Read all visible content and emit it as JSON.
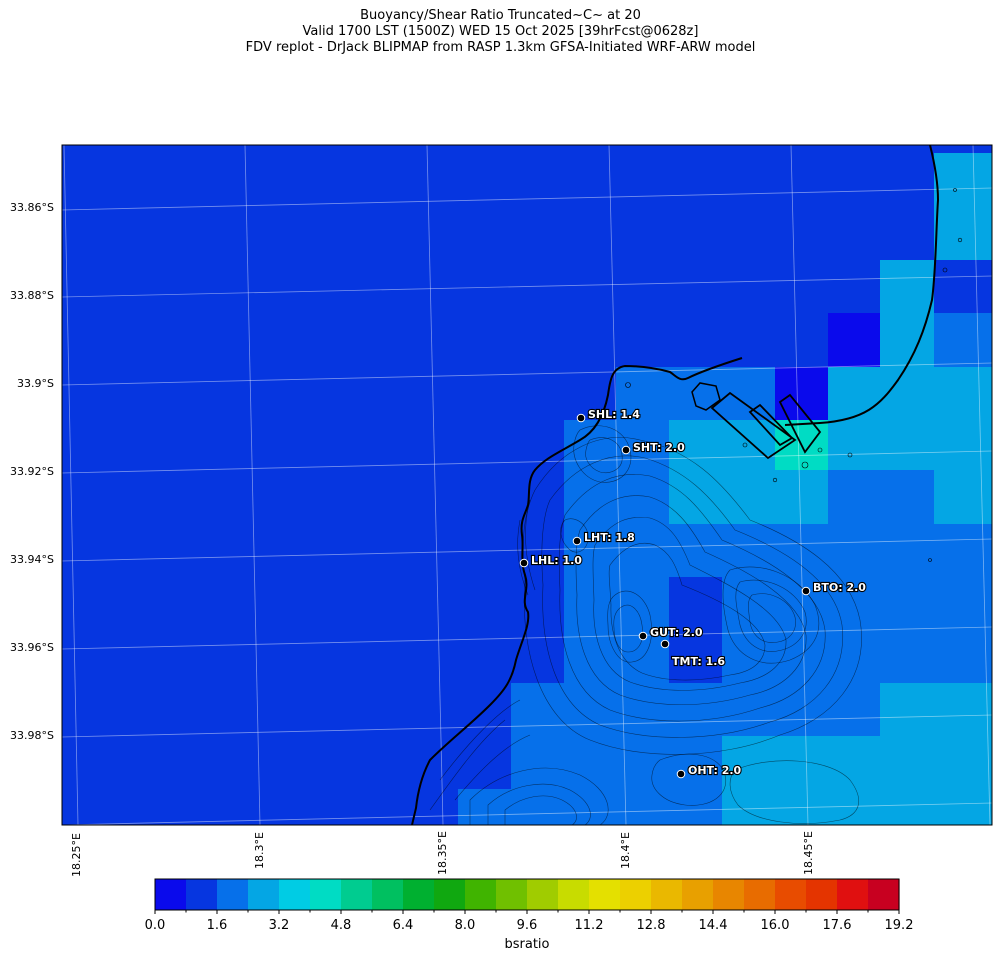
{
  "title": {
    "line1": "Buoyancy/Shear Ratio Truncated~C~    at 20",
    "line2": "Valid 1700 LST (1500Z) WED 15 Oct 2025 [39hrFcst@0628z]",
    "line3": "FDV replot - DrJack BLIPMAP from RASP 1.3km GFSA-Initiated WRF-ARW model"
  },
  "lat_labels": [
    "33.86°S",
    "33.88°S",
    "33.9°S",
    "33.92°S",
    "33.94°S",
    "33.96°S",
    "33.98°S"
  ],
  "lon_labels": [
    "18.25°E",
    "18.3°E",
    "18.35°E",
    "18.4°E",
    "18.45°E"
  ],
  "stations": [
    {
      "label": "SHL: 1.4"
    },
    {
      "label": "SHT: 2.0"
    },
    {
      "label": "LHT: 1.8"
    },
    {
      "label": "LHL: 1.0"
    },
    {
      "label": "BTO: 2.0"
    },
    {
      "label": "GUT: 2.0"
    },
    {
      "label": "TMT: 1.6"
    },
    {
      "label": "OHT: 2.0"
    }
  ],
  "colorbar": {
    "label": "bsratio",
    "ticks": [
      "0.0",
      "1.6",
      "3.2",
      "4.8",
      "6.4",
      "8.0",
      "9.6",
      "11.2",
      "12.8",
      "14.4",
      "16.0",
      "17.6",
      "19.2"
    ],
    "colors": [
      "#0a0aec",
      "#0636e0",
      "#0670ea",
      "#04a6e4",
      "#00cce4",
      "#00dcc4",
      "#00cc90",
      "#00c060",
      "#00b030",
      "#10a810",
      "#40b400",
      "#70c000",
      "#a0cc00",
      "#c8dc00",
      "#e4e000",
      "#ecd000",
      "#eab800",
      "#e8a000",
      "#e88600",
      "#e86c00",
      "#e84c00",
      "#e43400",
      "#e01010",
      "#c80020"
    ]
  },
  "field_colors": {
    "deep_blue": "#0636e0",
    "mid_blue": "#0670ea",
    "light_blue": "#04a6e4",
    "pure_blue": "#0a0aec",
    "teal": "#00dcc4"
  }
}
